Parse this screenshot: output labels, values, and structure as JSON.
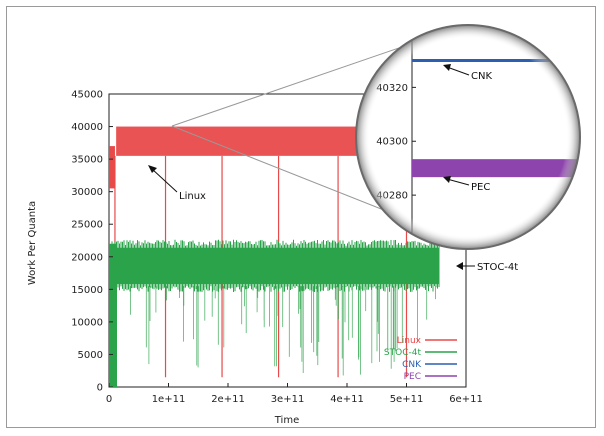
{
  "chart_data": {
    "type": "line",
    "title": "",
    "xlabel": "Time",
    "ylabel": "Work Per Quanta",
    "xlim": [
      0,
      600000000000
    ],
    "ylim": [
      0,
      45000
    ],
    "x_ticks": [
      {
        "value": 0,
        "label": "0"
      },
      {
        "value": 100000000000,
        "label": "1e+11"
      },
      {
        "value": 200000000000,
        "label": "2e+11"
      },
      {
        "value": 300000000000,
        "label": "3e+11"
      },
      {
        "value": 400000000000,
        "label": "4e+11"
      },
      {
        "value": 500000000000,
        "label": "5e+11"
      },
      {
        "value": 600000000000,
        "label": "6e+11"
      }
    ],
    "y_ticks": [
      {
        "value": 0,
        "label": "0"
      },
      {
        "value": 5000,
        "label": "5000"
      },
      {
        "value": 10000,
        "label": "10000"
      },
      {
        "value": 15000,
        "label": "15000"
      },
      {
        "value": 20000,
        "label": "20000"
      },
      {
        "value": 25000,
        "label": "25000"
      },
      {
        "value": 30000,
        "label": "30000"
      },
      {
        "value": 35000,
        "label": "35000"
      },
      {
        "value": 40000,
        "label": "40000"
      },
      {
        "value": 45000,
        "label": "45000"
      }
    ],
    "series": [
      {
        "name": "Linux",
        "color": "#e84a4a",
        "band": [
          35500,
          40000
        ],
        "dips_to": 1500,
        "dip_x": [
          10000000000,
          95000000000,
          190000000000,
          285000000000,
          385000000000,
          500000000000
        ]
      },
      {
        "name": "STOC-4t",
        "color": "#2aa34a",
        "band": [
          15500,
          22000
        ],
        "end_x": 555000000000
      },
      {
        "name": "CNK",
        "color": "#2c5fb0",
        "value": 40330
      },
      {
        "name": "PEC",
        "color": "#8e44ad",
        "value": 40290
      }
    ],
    "legend_position": "bottom-right",
    "annotations": [
      {
        "text": "Linux",
        "series": "Linux"
      },
      {
        "text": "STOC-4t",
        "series": "STOC-4t"
      },
      {
        "text": "CNK",
        "series": "CNK"
      },
      {
        "text": "PEC",
        "series": "PEC"
      }
    ],
    "inset": {
      "y_ticks": [
        {
          "value": 40320,
          "label": "40320"
        },
        {
          "value": 40300,
          "label": "40300"
        },
        {
          "value": 40280,
          "label": "40280"
        }
      ],
      "ylim": [
        40270,
        40335
      ]
    }
  }
}
